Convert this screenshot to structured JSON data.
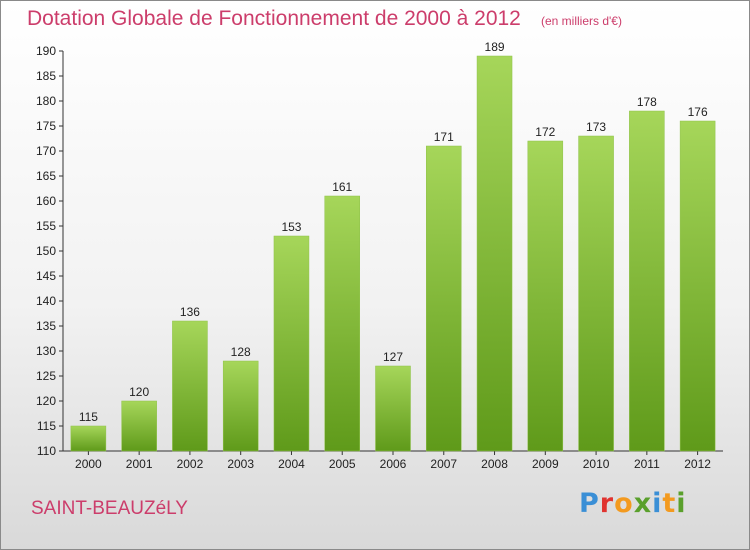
{
  "header": {
    "title": "Dotation Globale de Fonctionnement de 2000 à 2012",
    "unit": "(en milliers d'€)"
  },
  "footer": {
    "commune": "SAINT-BEAUZéLY",
    "logo": "Proxiti",
    "logo_colors": [
      "#3a8fd6",
      "#e0332f",
      "#f39a1f",
      "#5aa02c",
      "#3a8fd6",
      "#f39a1f",
      "#5aa02c"
    ]
  },
  "colors": {
    "bar_light": "#a6d65a",
    "bar_dark": "#5f9a1a",
    "accent_text": "#cc3d6b"
  },
  "chart_data": {
    "type": "bar",
    "title": "Dotation Globale de Fonctionnement de 2000 à 2012",
    "subtitle": "(en milliers d'€)",
    "xlabel": "",
    "ylabel": "",
    "categories": [
      "2000",
      "2001",
      "2002",
      "2003",
      "2004",
      "2005",
      "2006",
      "2007",
      "2008",
      "2009",
      "2010",
      "2011",
      "2012"
    ],
    "values": [
      115,
      120,
      136,
      128,
      153,
      161,
      127,
      171,
      189,
      172,
      173,
      178,
      176
    ],
    "ylim": [
      110,
      190
    ],
    "yticks": [
      110,
      115,
      120,
      125,
      130,
      135,
      140,
      145,
      150,
      155,
      160,
      165,
      170,
      175,
      180,
      185,
      190
    ],
    "grid": false,
    "legend": "none",
    "data_labels": true
  }
}
